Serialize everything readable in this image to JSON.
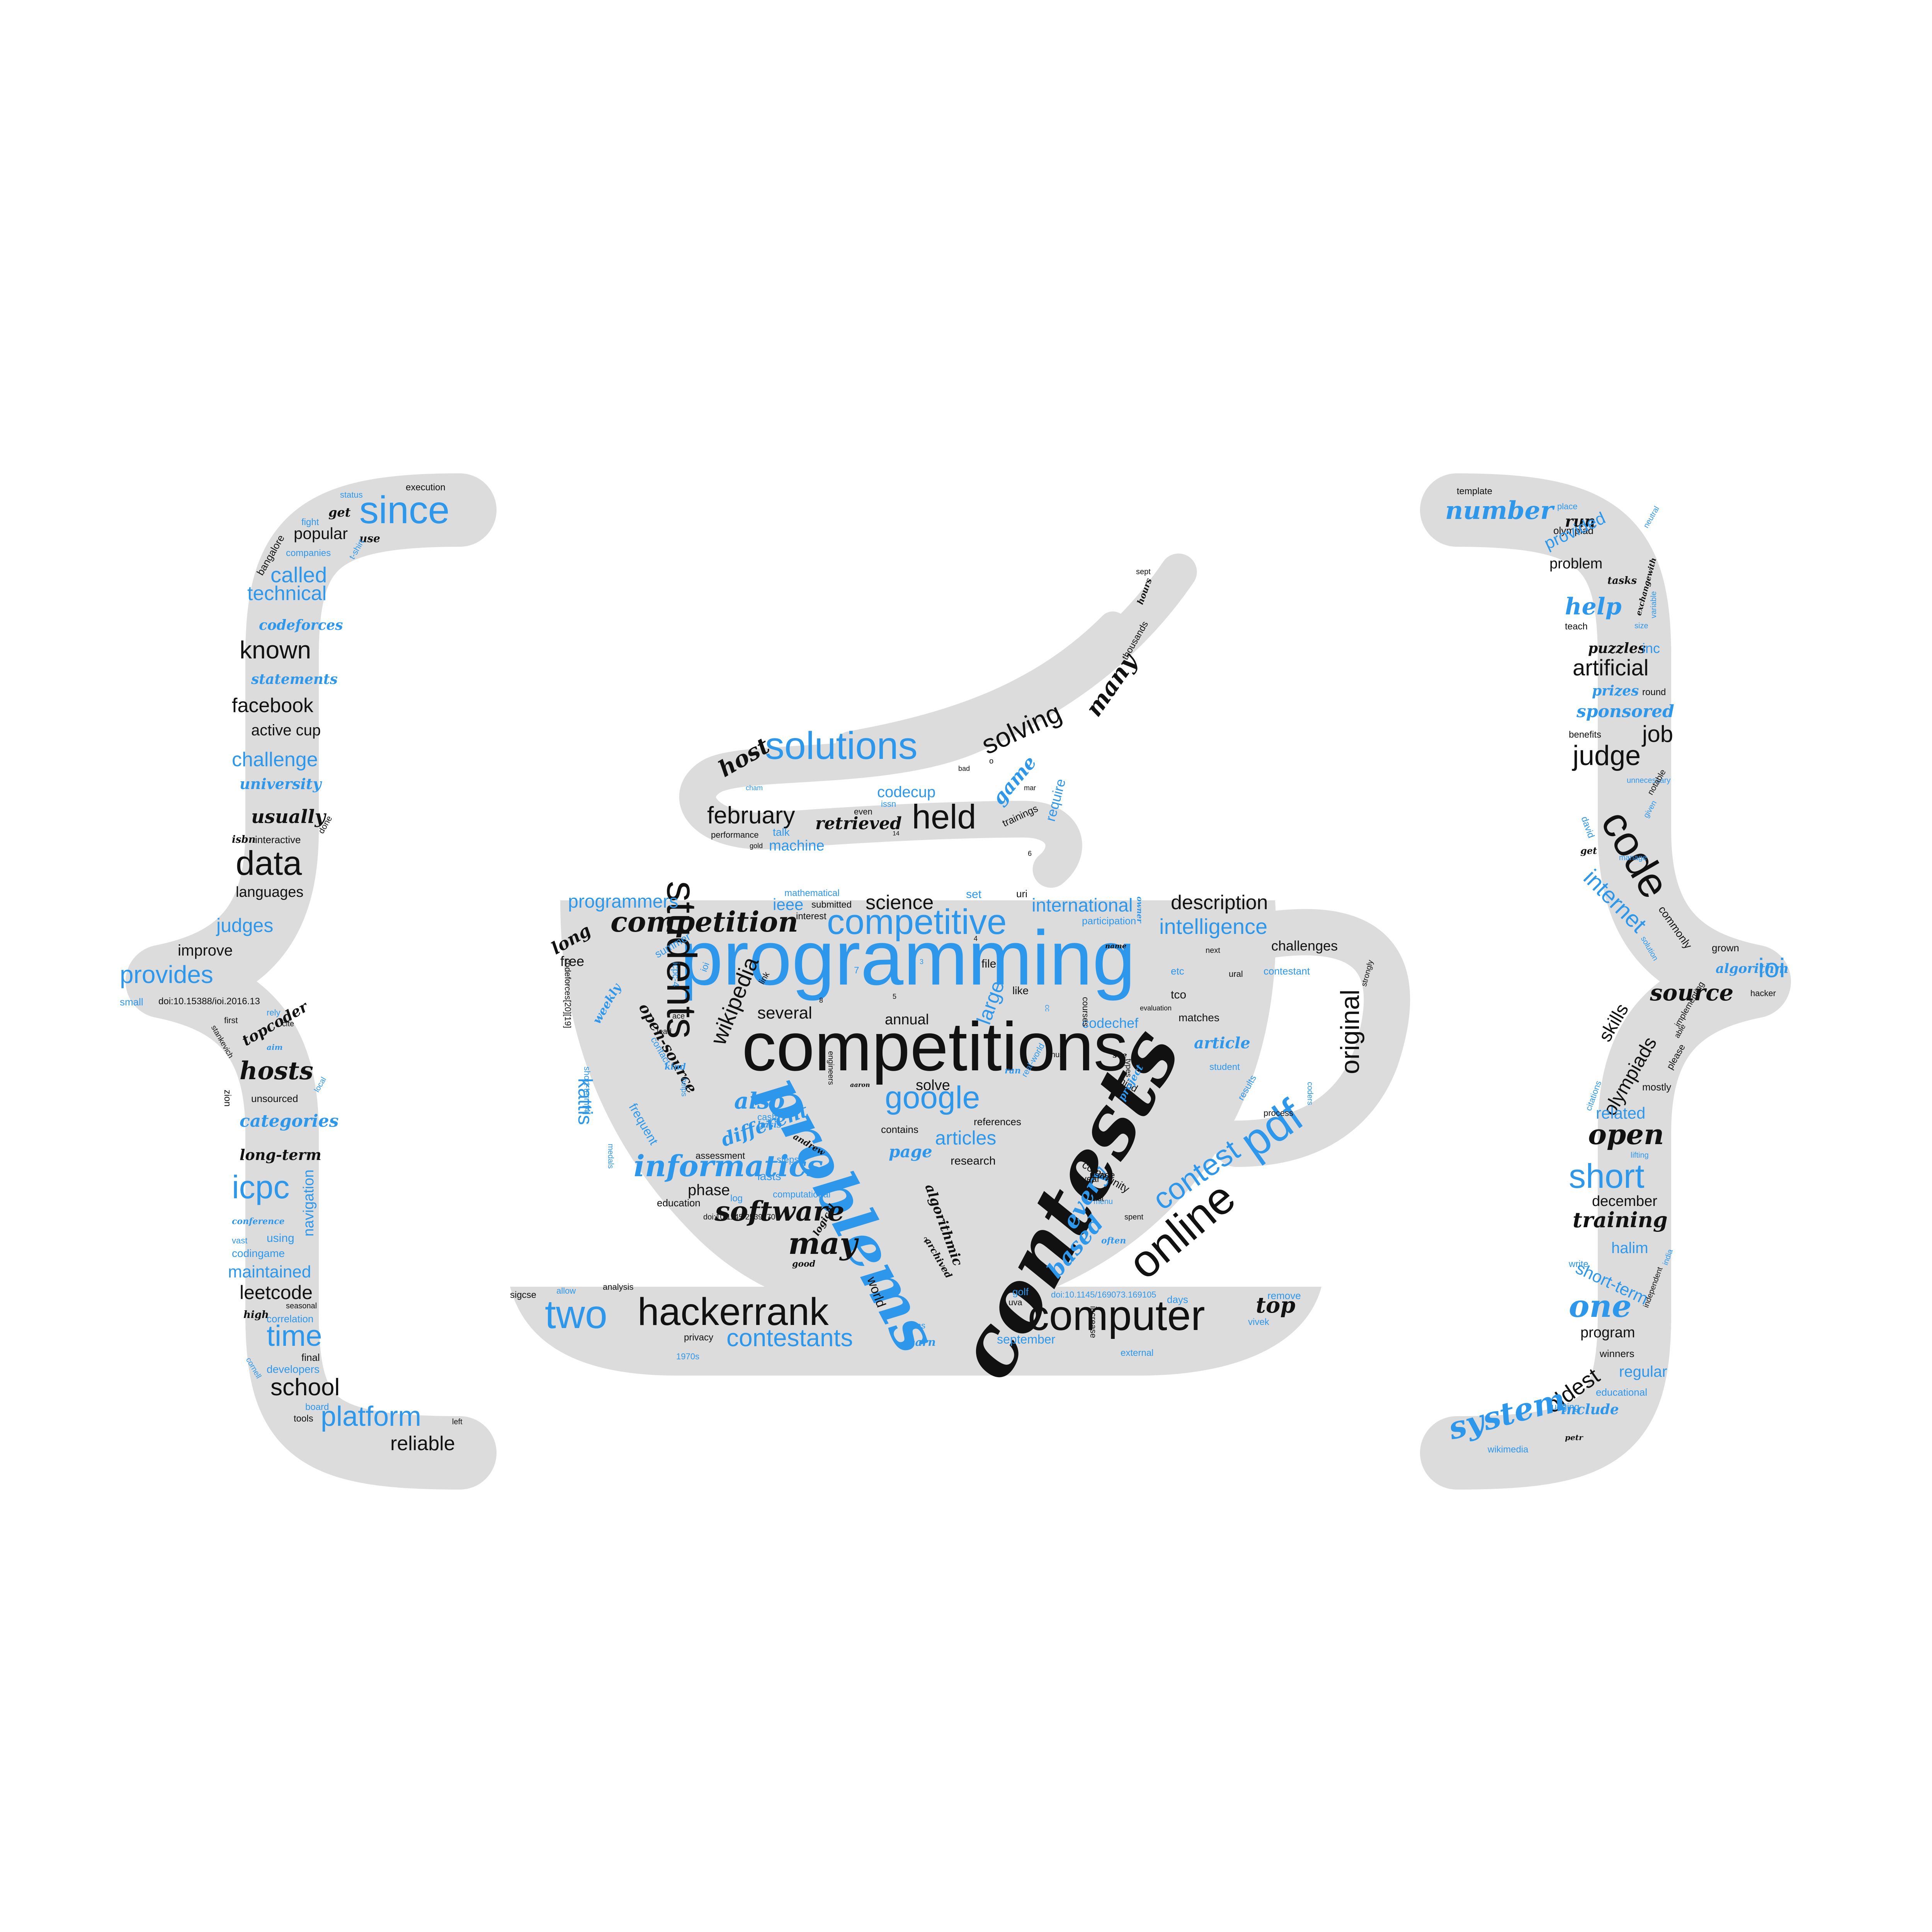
{
  "colors": {
    "background": "#ffffff",
    "shape": "#dcdcdc",
    "blue": "#2d97ec",
    "black": "#111111"
  },
  "shape_parts": [
    "left-curly-brace",
    "coffee-cup",
    "saucer",
    "steam",
    "right-curly-brace"
  ],
  "words": {
    "cup": [
      "programming",
      "competitions",
      "contests",
      "problems",
      "competitive",
      "students",
      "competition",
      "online",
      "pdf",
      "contest",
      "original",
      "computer",
      "hackerrank",
      "two",
      "informatics",
      "google",
      "software",
      "may",
      "contestants",
      "wikipedia",
      "kattis",
      "several",
      "articles",
      "science",
      "programmers",
      "intelligence",
      "international",
      "description",
      "challenges",
      "codechef",
      "tco",
      "matches",
      "article",
      "also",
      "different",
      "every",
      "based",
      "algorithmic",
      "page",
      "phase",
      "education",
      "file",
      "like",
      "large",
      "solve",
      "annual",
      "research",
      "community",
      "mind",
      "free",
      "long",
      "ieee",
      "mathematical",
      "set",
      "uri",
      "submitted",
      "interest",
      "summer",
      "link",
      "open-source",
      "contact",
      "kind",
      "weekly",
      "frequent",
      "lasts",
      "steps",
      "cash",
      "log",
      "computational",
      "andrew",
      "logical",
      "good",
      "archived",
      "assessment",
      "project",
      "see",
      "nus",
      "courses",
      "types",
      "engineers",
      "contains",
      "references",
      "usage",
      "often",
      "menu",
      "spent",
      "results",
      "process",
      "coders",
      "strongly",
      "contestant",
      "ural",
      "next",
      "etc",
      "participation",
      "owner",
      "name",
      "aaron",
      "ran",
      "real-world",
      "cc",
      "helps",
      "medals",
      "short-term[4]",
      "codeforces[20][19]",
      "doi:10.1145/2539270",
      "doi:10.1145/169073.169105",
      "basis",
      "student",
      "year",
      "list",
      "uva",
      "increase",
      "golf",
      "days",
      "vivek",
      "remove",
      "external",
      "september",
      "learn",
      "terms",
      "privacy",
      "analysis",
      "allow",
      "1970s",
      "sigcse",
      "world",
      "top",
      "icpc-4",
      "ace",
      "lead",
      "evaluation",
      "8",
      "7",
      "5",
      "4",
      "3",
      "2",
      "3.0"
    ],
    "steam": [
      "solutions",
      "solving",
      "many",
      "host",
      "february",
      "held",
      "retrieved",
      "game",
      "codecup",
      "machine",
      "require",
      "talk",
      "performance",
      "even",
      "issn",
      "trainings",
      "mar",
      "thousands",
      "hours",
      "sept",
      "bad",
      "o",
      "cham",
      "gold",
      "ioi",
      "6",
      "14"
    ],
    "left_brace": [
      "since",
      "execution",
      "status",
      "fight",
      "get",
      "use",
      "popular",
      "bangalore",
      "companies",
      "called",
      "t-shirt",
      "technical",
      "codeforces",
      "known",
      "statements",
      "facebook",
      "active cup",
      "challenge",
      "university",
      "usually",
      "isbn",
      "interactive",
      "done",
      "data",
      "languages",
      "judges",
      "improve",
      "provides",
      "small",
      "doi:10.15388/ioi.2016.13",
      "rely",
      "first",
      "topcoder",
      "cite",
      "stankevich",
      "aim",
      "hosts",
      "unsourced",
      "zion",
      "local",
      "categories",
      "long-term",
      "icpc",
      "navigation",
      "conference",
      "vast",
      "using",
      "codingame",
      "maintained",
      "leetcode",
      "high",
      "seasonal",
      "correlation",
      "time",
      "final",
      "cornell",
      "developers",
      "school",
      "board",
      "tools",
      "platform",
      "left",
      "reliable"
    ],
    "right_brace": [
      "template",
      "number",
      "place",
      "olympiad",
      "run",
      "provided",
      "neutral",
      "problem",
      "tasks",
      "exchangewith",
      "help",
      "variable",
      "teach",
      "size",
      "puzzles",
      "inc",
      "artificial",
      "prizes",
      "round",
      "sponsored",
      "benefits",
      "job",
      "judge",
      "unnecessary",
      "code",
      "notable",
      "given",
      "david",
      "get",
      "manage",
      "internet",
      "commonly",
      "grown",
      "solution",
      "algorithm",
      "ioi",
      "source",
      "hacker",
      "skills",
      "implementing",
      "olympiads",
      "please",
      "mostly",
      "citations",
      "related",
      "open",
      "lifting",
      "short",
      "december",
      "training",
      "halim",
      "write",
      "short-term",
      "india",
      "one",
      "independent",
      "program",
      "winners",
      "oldest",
      "regular",
      "educational",
      "judging",
      "include",
      "system",
      "petr",
      "wikimedia",
      "able"
    ]
  }
}
